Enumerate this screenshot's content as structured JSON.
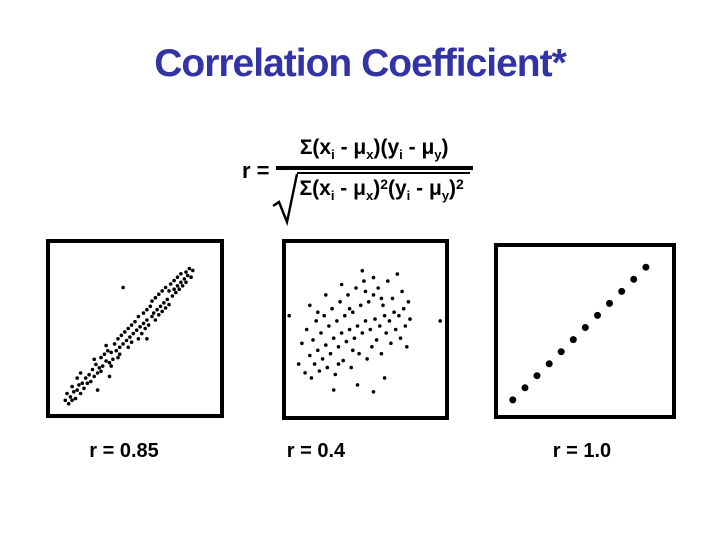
{
  "title": "Correlation Coefficient*",
  "colors": {
    "title": "#3333A6",
    "ink": "#000000",
    "background": "#FFFFFF"
  },
  "formula": {
    "lhs": "r =",
    "numerator_tokens": [
      [
        "n",
        "Σ(x"
      ],
      [
        "s",
        "i"
      ],
      [
        "n",
        " - μ"
      ],
      [
        "s",
        "x"
      ],
      [
        "n",
        ")(y"
      ],
      [
        "s",
        "i"
      ],
      [
        "n",
        " - μ"
      ],
      [
        "s",
        "y"
      ],
      [
        "n",
        ")"
      ]
    ],
    "denominator_tokens": [
      [
        "n",
        "Σ(x"
      ],
      [
        "s",
        "i"
      ],
      [
        "n",
        " - μ"
      ],
      [
        "s",
        "x"
      ],
      [
        "n",
        ")"
      ],
      [
        "u",
        "2"
      ],
      [
        "n",
        "(y"
      ],
      [
        "s",
        "i"
      ],
      [
        "n",
        " - μ"
      ],
      [
        "s",
        "y"
      ],
      [
        "n",
        ")"
      ],
      [
        "u",
        "2"
      ]
    ]
  },
  "chart_data": [
    {
      "type": "scatter",
      "label": "r = 0.85",
      "r_value": 0.85,
      "axes": "none",
      "points_units": "percent of plot area, origin bottom-left",
      "x_range": [
        0,
        100
      ],
      "y_range": [
        0,
        100
      ],
      "dot_radius": 1.8,
      "points": [
        [
          9,
          8
        ],
        [
          11,
          6
        ],
        [
          12,
          10
        ],
        [
          13,
          8
        ],
        [
          10,
          12
        ],
        [
          14,
          13
        ],
        [
          15,
          9
        ],
        [
          16,
          14
        ],
        [
          13,
          16
        ],
        [
          17,
          17
        ],
        [
          18,
          12
        ],
        [
          19,
          18
        ],
        [
          16,
          21
        ],
        [
          20,
          15
        ],
        [
          21,
          21
        ],
        [
          22,
          18
        ],
        [
          18,
          24
        ],
        [
          23,
          23
        ],
        [
          24,
          19
        ],
        [
          25,
          26
        ],
        [
          26,
          22
        ],
        [
          27,
          29
        ],
        [
          28,
          24
        ],
        [
          26,
          32
        ],
        [
          29,
          27
        ],
        [
          30,
          33
        ],
        [
          31,
          28
        ],
        [
          32,
          35
        ],
        [
          30,
          25
        ],
        [
          33,
          31
        ],
        [
          34,
          37
        ],
        [
          35,
          30
        ],
        [
          33,
          40
        ],
        [
          36,
          36
        ],
        [
          37,
          32
        ],
        [
          38,
          41
        ],
        [
          36,
          28
        ],
        [
          39,
          37
        ],
        [
          40,
          33
        ],
        [
          40,
          44
        ],
        [
          41,
          39
        ],
        [
          42,
          46
        ],
        [
          43,
          41
        ],
        [
          41,
          35
        ],
        [
          44,
          48
        ],
        [
          45,
          43
        ],
        [
          46,
          39
        ],
        [
          46,
          50
        ],
        [
          47,
          45
        ],
        [
          48,
          52
        ],
        [
          49,
          47
        ],
        [
          48,
          42
        ],
        [
          50,
          54
        ],
        [
          51,
          49
        ],
        [
          52,
          44
        ],
        [
          52,
          57
        ],
        [
          53,
          51
        ],
        [
          54,
          47
        ],
        [
          55,
          59
        ],
        [
          55,
          53
        ],
        [
          56,
          50
        ],
        [
          57,
          61
        ],
        [
          57,
          55
        ],
        [
          58,
          52
        ],
        [
          59,
          63
        ],
        [
          60,
          57
        ],
        [
          60,
          66
        ],
        [
          61,
          59
        ],
        [
          62,
          55
        ],
        [
          62,
          68
        ],
        [
          63,
          61
        ],
        [
          64,
          58
        ],
        [
          64,
          70
        ],
        [
          65,
          63
        ],
        [
          66,
          60
        ],
        [
          66,
          72
        ],
        [
          67,
          65
        ],
        [
          68,
          62
        ],
        [
          68,
          74
        ],
        [
          69,
          67
        ],
        [
          70,
          72
        ],
        [
          70,
          64
        ],
        [
          71,
          76
        ],
        [
          72,
          69
        ],
        [
          73,
          73
        ],
        [
          73,
          78
        ],
        [
          74,
          71
        ],
        [
          75,
          75
        ],
        [
          75,
          80
        ],
        [
          76,
          73
        ],
        [
          77,
          77
        ],
        [
          77,
          82
        ],
        [
          78,
          75
        ],
        [
          79,
          79
        ],
        [
          80,
          83
        ],
        [
          80,
          77
        ],
        [
          81,
          81
        ],
        [
          82,
          85
        ],
        [
          83,
          80
        ],
        [
          84,
          84
        ],
        [
          43,
          74
        ],
        [
          57,
          44
        ],
        [
          28,
          14
        ],
        [
          35,
          22
        ]
      ]
    },
    {
      "type": "scatter",
      "label": "r = 0.4",
      "r_value": 0.4,
      "axes": "none",
      "points_units": "percent of plot area, origin bottom-left",
      "x_range": [
        0,
        100
      ],
      "y_range": [
        0,
        100
      ],
      "dot_radius": 1.8,
      "points": [
        [
          8,
          30
        ],
        [
          10,
          42
        ],
        [
          12,
          25
        ],
        [
          13,
          50
        ],
        [
          15,
          35
        ],
        [
          16,
          22
        ],
        [
          17,
          44
        ],
        [
          18,
          30
        ],
        [
          19,
          55
        ],
        [
          20,
          38
        ],
        [
          21,
          26
        ],
        [
          22,
          48
        ],
        [
          23,
          33
        ],
        [
          24,
          58
        ],
        [
          25,
          41
        ],
        [
          26,
          28
        ],
        [
          27,
          52
        ],
        [
          28,
          36
        ],
        [
          29,
          62
        ],
        [
          30,
          45
        ],
        [
          31,
          24
        ],
        [
          32,
          55
        ],
        [
          33,
          40
        ],
        [
          34,
          66
        ],
        [
          35,
          48
        ],
        [
          36,
          32
        ],
        [
          37,
          58
        ],
        [
          38,
          43
        ],
        [
          39,
          70
        ],
        [
          40,
          50
        ],
        [
          41,
          28
        ],
        [
          42,
          60
        ],
        [
          43,
          45
        ],
        [
          44,
          74
        ],
        [
          45,
          52
        ],
        [
          46,
          36
        ],
        [
          47,
          64
        ],
        [
          48,
          48
        ],
        [
          49,
          78
        ],
        [
          50,
          55
        ],
        [
          51,
          33
        ],
        [
          52,
          66
        ],
        [
          53,
          50
        ],
        [
          54,
          40
        ],
        [
          55,
          70
        ],
        [
          56,
          56
        ],
        [
          57,
          44
        ],
        [
          58,
          74
        ],
        [
          59,
          52
        ],
        [
          60,
          36
        ],
        [
          61,
          64
        ],
        [
          62,
          58
        ],
        [
          63,
          48
        ],
        [
          64,
          78
        ],
        [
          65,
          55
        ],
        [
          66,
          42
        ],
        [
          67,
          68
        ],
        [
          68,
          60
        ],
        [
          69,
          50
        ],
        [
          70,
          82
        ],
        [
          71,
          58
        ],
        [
          72,
          45
        ],
        [
          73,
          72
        ],
        [
          74,
          62
        ],
        [
          75,
          52
        ],
        [
          76,
          40
        ],
        [
          77,
          66
        ],
        [
          78,
          56
        ],
        [
          2,
          58
        ],
        [
          97,
          55
        ],
        [
          30,
          15
        ],
        [
          45,
          18
        ],
        [
          55,
          14
        ],
        [
          62,
          22
        ],
        [
          25,
          70
        ],
        [
          35,
          76
        ],
        [
          48,
          84
        ],
        [
          55,
          80
        ],
        [
          40,
          62
        ],
        [
          50,
          72
        ],
        [
          60,
          68
        ],
        [
          20,
          60
        ],
        [
          15,
          64
        ],
        [
          42,
          38
        ],
        [
          33,
          30
        ]
      ]
    },
    {
      "type": "scatter",
      "label": "r = 1.0",
      "r_value": 1.0,
      "axes": "none",
      "points_units": "percent of plot area, origin bottom-left",
      "x_range": [
        0,
        100
      ],
      "y_range": [
        0,
        100
      ],
      "dot_radius": 3.5,
      "points": [
        [
          8.5,
          9
        ],
        [
          15.5,
          16.2
        ],
        [
          22.4,
          23.4
        ],
        [
          29.4,
          30.5
        ],
        [
          36.3,
          37.7
        ],
        [
          43.3,
          44.9
        ],
        [
          50.2,
          52.1
        ],
        [
          57.2,
          59.3
        ],
        [
          64.1,
          66.4
        ],
        [
          71.1,
          73.6
        ],
        [
          78,
          80.8
        ],
        [
          85,
          88
        ]
      ]
    }
  ]
}
